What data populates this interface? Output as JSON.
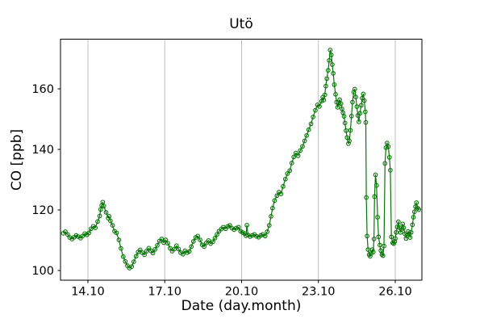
{
  "figure": {
    "title": "Utö",
    "background_color": "#ffffff"
  },
  "chart_data": {
    "type": "line",
    "title": "Utö",
    "xlabel": "Date (day.month)",
    "ylabel": "CO [ppb]",
    "legend": "none",
    "grid": {
      "axis": "x",
      "color": "#b8b8b8"
    },
    "x_axis": {
      "lim": [
        12.93,
        27.04
      ],
      "tick_values": [
        14,
        17,
        20,
        23,
        26
      ],
      "tick_labels": [
        "14.10",
        "17.10",
        "20.10",
        "23.10",
        "26.10"
      ]
    },
    "y_axis": {
      "lim": [
        96.8,
        176.4
      ],
      "tick_values": [
        100,
        120,
        140,
        160
      ],
      "tick_labels": [
        "100",
        "120",
        "140",
        "160"
      ]
    },
    "style": {
      "line_color": "#077507",
      "marker": "open-circle",
      "marker_radius": 2.3,
      "line_width": 1.2,
      "spine_color": "#000000"
    },
    "series": [
      {
        "name": "CO",
        "points": [
          [
            13.04,
            112.3
          ],
          [
            13.12,
            112.8
          ],
          [
            13.21,
            111.9
          ],
          [
            13.29,
            110.9
          ],
          [
            13.38,
            110.4
          ],
          [
            13.46,
            111.0
          ],
          [
            13.54,
            111.6
          ],
          [
            13.62,
            111.2
          ],
          [
            13.71,
            110.7
          ],
          [
            13.79,
            111.4
          ],
          [
            13.88,
            112.2
          ],
          [
            13.96,
            111.8
          ],
          [
            14.04,
            112.4
          ],
          [
            14.12,
            113.8
          ],
          [
            14.21,
            114.6
          ],
          [
            14.29,
            114.1
          ],
          [
            14.38,
            116.2
          ],
          [
            14.46,
            118.0
          ],
          [
            14.5,
            120.2
          ],
          [
            14.54,
            121.5
          ],
          [
            14.58,
            122.6
          ],
          [
            14.62,
            121.3
          ],
          [
            14.71,
            119.2
          ],
          [
            14.79,
            117.3
          ],
          [
            14.83,
            117.9
          ],
          [
            14.88,
            116.4
          ],
          [
            14.96,
            114.9
          ],
          [
            15.04,
            113.0
          ],
          [
            15.12,
            112.4
          ],
          [
            15.21,
            110.1
          ],
          [
            15.29,
            107.3
          ],
          [
            15.38,
            104.6
          ],
          [
            15.46,
            103.0
          ],
          [
            15.54,
            101.6
          ],
          [
            15.62,
            100.8
          ],
          [
            15.71,
            101.3
          ],
          [
            15.79,
            102.9
          ],
          [
            15.88,
            104.7
          ],
          [
            15.96,
            106.1
          ],
          [
            16.04,
            106.8
          ],
          [
            16.12,
            105.9
          ],
          [
            16.21,
            105.2
          ],
          [
            16.29,
            106.4
          ],
          [
            16.38,
            107.4
          ],
          [
            16.46,
            106.5
          ],
          [
            16.54,
            105.8
          ],
          [
            16.62,
            107.0
          ],
          [
            16.71,
            108.3
          ],
          [
            16.79,
            109.7
          ],
          [
            16.88,
            110.4
          ],
          [
            16.96,
            109.2
          ],
          [
            17.04,
            110.1
          ],
          [
            17.12,
            109.0
          ],
          [
            17.21,
            107.4
          ],
          [
            17.29,
            106.4
          ],
          [
            17.38,
            107.1
          ],
          [
            17.46,
            108.2
          ],
          [
            17.54,
            107.1
          ],
          [
            17.62,
            105.9
          ],
          [
            17.71,
            105.4
          ],
          [
            17.79,
            106.5
          ],
          [
            17.88,
            105.9
          ],
          [
            17.96,
            106.3
          ],
          [
            18.04,
            107.9
          ],
          [
            18.12,
            109.6
          ],
          [
            18.21,
            110.9
          ],
          [
            18.29,
            111.4
          ],
          [
            18.38,
            110.1
          ],
          [
            18.46,
            108.5
          ],
          [
            18.54,
            107.9
          ],
          [
            18.62,
            109.1
          ],
          [
            18.71,
            109.9
          ],
          [
            18.79,
            108.9
          ],
          [
            18.88,
            109.5
          ],
          [
            18.96,
            110.7
          ],
          [
            19.04,
            111.9
          ],
          [
            19.12,
            113.0
          ],
          [
            19.21,
            113.7
          ],
          [
            19.29,
            114.3
          ],
          [
            19.38,
            113.8
          ],
          [
            19.46,
            114.6
          ],
          [
            19.54,
            114.9
          ],
          [
            19.62,
            114.0
          ],
          [
            19.71,
            113.5
          ],
          [
            19.79,
            114.0
          ],
          [
            19.88,
            114.3
          ],
          [
            19.96,
            113.0
          ],
          [
            20.04,
            112.6
          ],
          [
            20.12,
            112.2
          ],
          [
            20.17,
            111.5
          ],
          [
            20.21,
            115.0
          ],
          [
            20.25,
            111.7
          ],
          [
            20.33,
            111.2
          ],
          [
            20.42,
            111.6
          ],
          [
            20.5,
            111.9
          ],
          [
            20.58,
            111.3
          ],
          [
            20.67,
            111.0
          ],
          [
            20.75,
            111.6
          ],
          [
            20.83,
            111.9
          ],
          [
            20.92,
            111.4
          ],
          [
            21.0,
            112.8
          ],
          [
            21.08,
            114.9
          ],
          [
            21.15,
            117.9
          ],
          [
            21.21,
            120.6
          ],
          [
            21.29,
            123.1
          ],
          [
            21.38,
            124.7
          ],
          [
            21.46,
            125.9
          ],
          [
            21.54,
            125.3
          ],
          [
            21.62,
            127.8
          ],
          [
            21.71,
            130.2
          ],
          [
            21.79,
            132.0
          ],
          [
            21.88,
            133.0
          ],
          [
            21.96,
            135.5
          ],
          [
            22.04,
            137.5
          ],
          [
            22.12,
            138.8
          ],
          [
            22.21,
            137.9
          ],
          [
            22.29,
            139.6
          ],
          [
            22.38,
            141.0
          ],
          [
            22.46,
            142.8
          ],
          [
            22.54,
            144.6
          ],
          [
            22.62,
            146.5
          ],
          [
            22.71,
            148.4
          ],
          [
            22.79,
            150.7
          ],
          [
            22.88,
            152.9
          ],
          [
            22.96,
            154.7
          ],
          [
            23.04,
            154.2
          ],
          [
            23.12,
            155.9
          ],
          [
            23.17,
            157.2
          ],
          [
            23.21,
            156.3
          ],
          [
            23.25,
            158.0
          ],
          [
            23.29,
            160.9
          ],
          [
            23.33,
            163.4
          ],
          [
            23.38,
            166.1
          ],
          [
            23.42,
            169.4
          ],
          [
            23.46,
            172.8
          ],
          [
            23.5,
            171.2
          ],
          [
            23.54,
            168.0
          ],
          [
            23.58,
            165.1
          ],
          [
            23.62,
            161.4
          ],
          [
            23.67,
            158.2
          ],
          [
            23.71,
            155.6
          ],
          [
            23.75,
            153.9
          ],
          [
            23.79,
            155.3
          ],
          [
            23.83,
            156.4
          ],
          [
            23.88,
            155.1
          ],
          [
            23.92,
            153.4
          ],
          [
            23.96,
            152.1
          ],
          [
            24.0,
            150.9
          ],
          [
            24.04,
            148.7
          ],
          [
            24.08,
            146.2
          ],
          [
            24.12,
            143.9
          ],
          [
            24.17,
            141.9
          ],
          [
            24.21,
            142.8
          ],
          [
            24.25,
            146.3
          ],
          [
            24.29,
            151.0
          ],
          [
            24.33,
            155.6
          ],
          [
            24.38,
            158.9
          ],
          [
            24.42,
            159.9
          ],
          [
            24.46,
            157.3
          ],
          [
            24.5,
            154.1
          ],
          [
            24.54,
            151.2
          ],
          [
            24.58,
            149.1
          ],
          [
            24.62,
            151.9
          ],
          [
            24.67,
            154.6
          ],
          [
            24.71,
            156.9
          ],
          [
            24.75,
            158.3
          ],
          [
            24.79,
            156.1
          ],
          [
            24.83,
            152.4
          ],
          [
            24.85,
            148.9
          ],
          [
            24.87,
            124.1
          ],
          [
            24.9,
            111.4
          ],
          [
            24.94,
            106.9
          ],
          [
            24.98,
            105.2
          ],
          [
            25.02,
            104.7
          ],
          [
            25.06,
            105.6
          ],
          [
            25.1,
            106.9
          ],
          [
            25.14,
            106.1
          ],
          [
            25.17,
            110.4
          ],
          [
            25.19,
            124.4
          ],
          [
            25.23,
            131.6
          ],
          [
            25.27,
            128.1
          ],
          [
            25.31,
            117.6
          ],
          [
            25.35,
            111.1
          ],
          [
            25.4,
            108.4
          ],
          [
            25.44,
            106.6
          ],
          [
            25.48,
            105.3
          ],
          [
            25.52,
            104.9
          ],
          [
            25.56,
            108.1
          ],
          [
            25.6,
            135.4
          ],
          [
            25.64,
            140.6
          ],
          [
            25.68,
            142.1
          ],
          [
            25.73,
            140.9
          ],
          [
            25.77,
            137.4
          ],
          [
            25.81,
            133.1
          ],
          [
            25.85,
            111.1
          ],
          [
            25.9,
            109.1
          ],
          [
            25.94,
            108.9
          ],
          [
            25.98,
            109.6
          ],
          [
            26.0,
            110.6
          ],
          [
            26.04,
            112.6
          ],
          [
            26.08,
            114.4
          ],
          [
            26.12,
            116.1
          ],
          [
            26.17,
            114.1
          ],
          [
            26.21,
            112.6
          ],
          [
            26.25,
            113.6
          ],
          [
            26.29,
            115.4
          ],
          [
            26.33,
            114.1
          ],
          [
            26.38,
            112.1
          ],
          [
            26.42,
            110.6
          ],
          [
            26.46,
            111.6
          ],
          [
            26.5,
            112.9
          ],
          [
            26.54,
            112.1
          ],
          [
            26.58,
            110.9
          ],
          [
            26.62,
            112.6
          ],
          [
            26.67,
            115.1
          ],
          [
            26.71,
            117.6
          ],
          [
            26.75,
            119.4
          ],
          [
            26.79,
            121.1
          ],
          [
            26.83,
            122.4
          ],
          [
            26.88,
            120.6
          ],
          [
            26.92,
            120.1
          ]
        ]
      }
    ]
  }
}
